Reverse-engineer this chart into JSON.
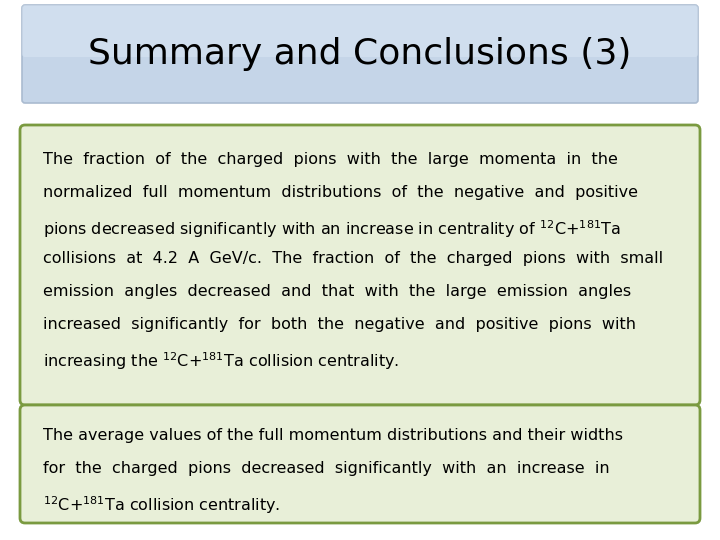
{
  "title": "Summary and Conclusions (3)",
  "title_fontsize": 26,
  "title_color": "#000000",
  "title_box_facecolor": "#c5d5e8",
  "title_box_edgecolor": "#aabbd0",
  "background_color": "#ffffff",
  "box_bg_color": "#e8efd8",
  "box_border_color": "#7a9a40",
  "text_fontsize": 11.5,
  "text_color": "#000000",
  "box1_lines": [
    "The  fraction  of  the  charged  pions  with  the  large  momenta  in  the",
    "normalized  full  momentum  distributions  of  the  negative  and  positive",
    "pions decreased significantly with an increase in centrality of $^{12}$C+$^{181}$Ta",
    "collisions  at  4.2  A  GeV/c.  The  fraction  of  the  charged  pions  with  small",
    "emission  angles  decreased  and  that  with  the  large  emission  angles",
    "increased  significantly  for  both  the  negative  and  positive  pions  with",
    "increasing the $^{12}$C+$^{181}$Ta collision centrality."
  ],
  "box2_lines": [
    "The average values of the full momentum distributions and their widths",
    "for  the  charged  pions  decreased  significantly  with  an  increase  in",
    "$^{12}$C+$^{181}$Ta collision centrality."
  ]
}
